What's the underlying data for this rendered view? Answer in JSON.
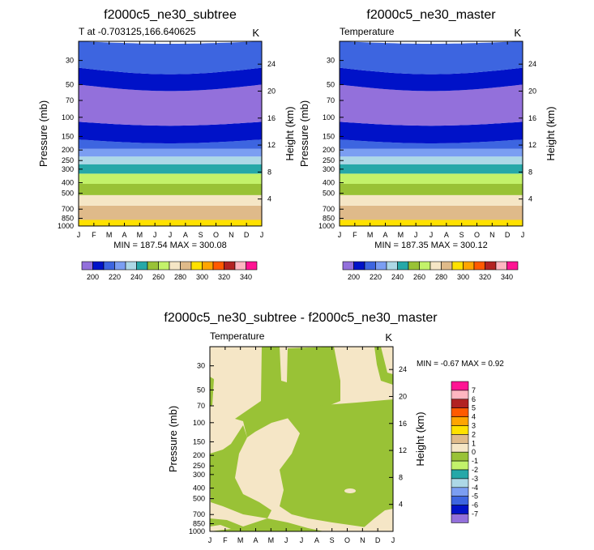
{
  "chart_data": [
    {
      "type": "heatmap",
      "title": "f2000c5_ne30_subtree",
      "left_label": "T at -0.703125,166.640625",
      "right_label": "K",
      "ylabel": "Pressure (mb)",
      "ylabel_right": "Height (km)",
      "x_ticks": [
        "J",
        "F",
        "M",
        "A",
        "M",
        "J",
        "J",
        "A",
        "S",
        "O",
        "N",
        "D",
        "J"
      ],
      "y_ticks": [
        "30",
        "50",
        "70",
        "100",
        "150",
        "200",
        "250",
        "300",
        "400",
        "500",
        "700",
        "850",
        "1000"
      ],
      "y_right_ticks": [
        "24",
        "20",
        "16",
        "12",
        "8",
        "4"
      ],
      "min": 187.54,
      "max": 300.08,
      "stats_text": "MIN = 187.54 MAX = 300.08",
      "colorbar_labels": [
        "200",
        "220",
        "240",
        "260",
        "280",
        "300",
        "320",
        "340"
      ],
      "bands": [
        {
          "p": [
            1000,
            880
          ],
          "color": "#ffe100"
        },
        {
          "p": [
            880,
            650
          ],
          "color": "#dfba8a"
        },
        {
          "p": [
            650,
            520
          ],
          "color": "#f5e6c6"
        },
        {
          "p": [
            520,
            410
          ],
          "color": "#99c236"
        },
        {
          "p": [
            410,
            330
          ],
          "color": "#c3f26a"
        },
        {
          "p": [
            330,
            270
          ],
          "color": "#26a8a8"
        },
        {
          "p": [
            270,
            230
          ],
          "color": "#add8e6"
        },
        {
          "p": [
            230,
            195
          ],
          "color": "#7b9ef2"
        },
        {
          "p": [
            195,
            160
          ],
          "color": "#3d65e0"
        },
        {
          "p": [
            160,
            110
          ],
          "color": "#0012c8"
        },
        {
          "p": [
            110,
            50
          ],
          "color": "#9370db"
        },
        {
          "p": [
            50,
            35
          ],
          "color": "#0012c8"
        },
        {
          "p": [
            35,
            20
          ],
          "color": "#3d65e0"
        }
      ]
    },
    {
      "type": "heatmap",
      "title": "f2000c5_ne30_master",
      "left_label": "Temperature",
      "right_label": "K",
      "ylabel": "Pressure (mb)",
      "ylabel_right": "Height (km)",
      "x_ticks": [
        "J",
        "F",
        "M",
        "A",
        "M",
        "J",
        "J",
        "A",
        "S",
        "O",
        "N",
        "D",
        "J"
      ],
      "y_ticks": [
        "30",
        "50",
        "70",
        "100",
        "150",
        "200",
        "250",
        "300",
        "400",
        "500",
        "700",
        "850",
        "1000"
      ],
      "y_right_ticks": [
        "24",
        "20",
        "16",
        "12",
        "8",
        "4"
      ],
      "min": 187.35,
      "max": 300.12,
      "stats_text": "MIN = 187.35 MAX = 300.12",
      "colorbar_labels": [
        "200",
        "220",
        "240",
        "260",
        "280",
        "300",
        "320",
        "340"
      ]
    },
    {
      "type": "heatmap",
      "title": "f2000c5_ne30_subtree - f2000c5_ne30_master",
      "left_label": "Temperature",
      "right_label": "K",
      "ylabel": "Pressure (mb)",
      "ylabel_right": "Height (km)",
      "x_ticks": [
        "J",
        "F",
        "M",
        "A",
        "M",
        "J",
        "J",
        "A",
        "S",
        "O",
        "N",
        "D",
        "J"
      ],
      "y_ticks": [
        "30",
        "50",
        "70",
        "100",
        "150",
        "200",
        "250",
        "300",
        "400",
        "500",
        "700",
        "850",
        "1000"
      ],
      "y_right_ticks": [
        "24",
        "20",
        "16",
        "12",
        "8",
        "4"
      ],
      "min": -0.67,
      "max": 0.92,
      "stats_text": "MIN =  -0.67 MAX =   0.92",
      "colorbar_labels": [
        "7",
        "6",
        "5",
        "4",
        "3",
        "2",
        "1",
        "0",
        "-1",
        "-2",
        "-3",
        "-4",
        "-5",
        "-6",
        "-7"
      ],
      "fill_colors": {
        "positive": "#f5e6c6",
        "negative": "#99c236"
      }
    }
  ],
  "colors": {
    "temperature_scale": [
      "#9370db",
      "#0012c8",
      "#3d65e0",
      "#7b9ef2",
      "#add8e6",
      "#26a8a8",
      "#99c236",
      "#c3f26a",
      "#f5e6c6",
      "#dfba8a",
      "#ffe100",
      "#ffa500",
      "#ff5a00",
      "#b22222",
      "#ffb6c1",
      "#ff1493"
    ],
    "difference_scale": [
      "#ff1493",
      "#ffb6c1",
      "#b22222",
      "#ff5a00",
      "#ffa500",
      "#ffe100",
      "#dfba8a",
      "#f5e6c6",
      "#99c236",
      "#c3f26a",
      "#26a8a8",
      "#add8e6",
      "#7b9ef2",
      "#3d65e0",
      "#0012c8",
      "#9370db"
    ]
  }
}
